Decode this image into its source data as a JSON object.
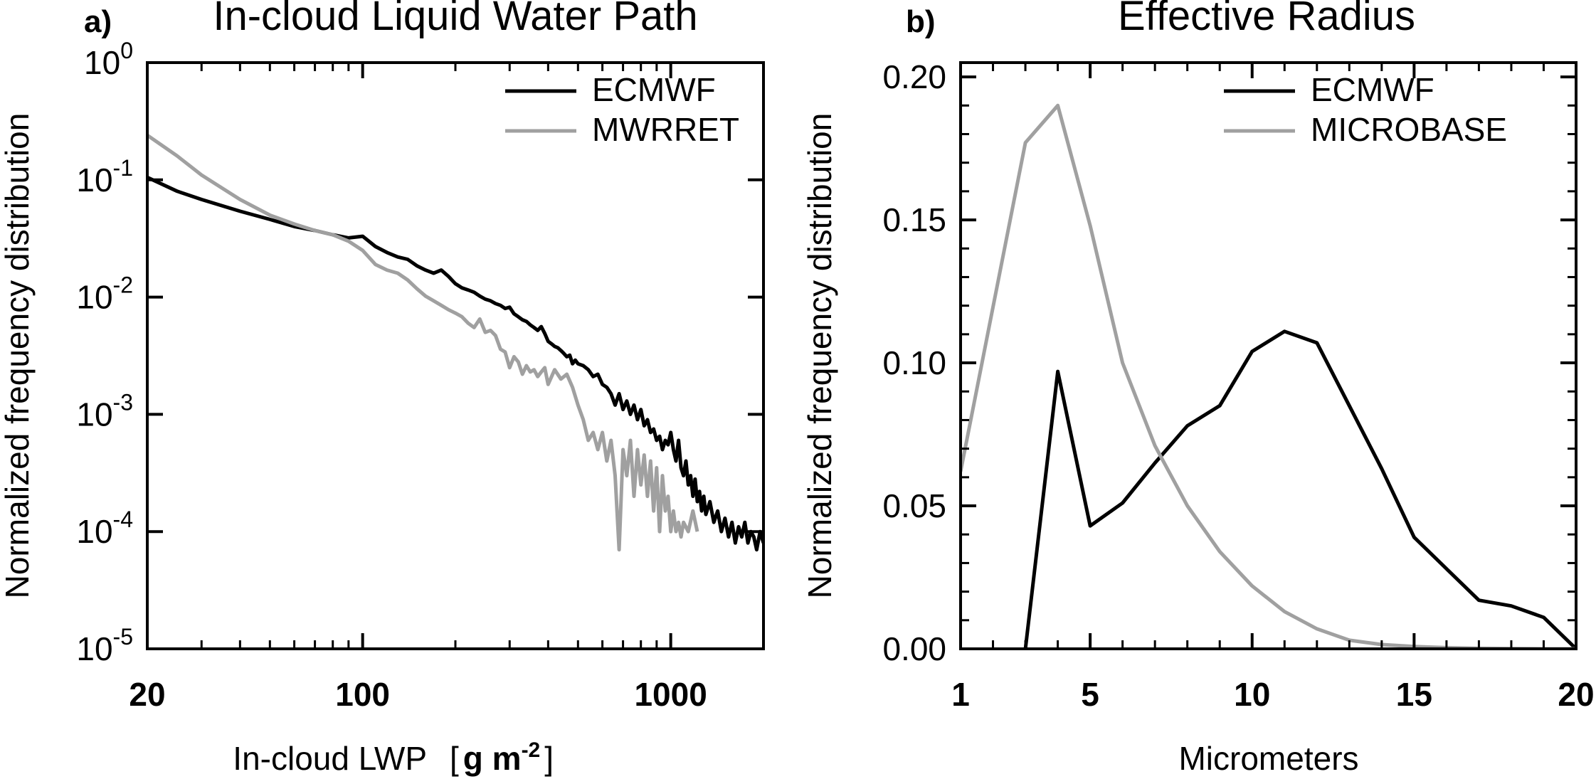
{
  "chart_data": [
    {
      "panel": "a)",
      "type": "line",
      "title": "In-cloud Liquid Water Path",
      "xlabel": "In-cloud LWP",
      "xlabel_unit": "[g m-2]",
      "xlabel_unit_parts": {
        "bracket_open": "[",
        "base": "g m",
        "sup": "-2",
        "bracket_close": "]"
      },
      "ylabel": "Normalized frequency distribution",
      "xscale": "log",
      "yscale": "log",
      "xlim": [
        20,
        2000
      ],
      "ylim": [
        1e-05,
        1
      ],
      "xticks": [
        {
          "value": 20,
          "label": "20"
        },
        {
          "value": 100,
          "label": "100"
        },
        {
          "value": 1000,
          "label": "1000"
        }
      ],
      "yticks": [
        {
          "value": 1,
          "base": "10",
          "sup": "0"
        },
        {
          "value": 0.1,
          "base": "10",
          "sup": "-1"
        },
        {
          "value": 0.01,
          "base": "10",
          "sup": "-2"
        },
        {
          "value": 0.001,
          "base": "10",
          "sup": "-3"
        },
        {
          "value": 0.0001,
          "base": "10",
          "sup": "-4"
        },
        {
          "value": 1e-05,
          "base": "10",
          "sup": "-5"
        }
      ],
      "legend_position": "top-right",
      "series": [
        {
          "name": "ECMWF",
          "color": "#000000",
          "points": [
            [
              20,
              0.105
            ],
            [
              25,
              0.08
            ],
            [
              30,
              0.068
            ],
            [
              40,
              0.054
            ],
            [
              50,
              0.046
            ],
            [
              60,
              0.04
            ],
            [
              70,
              0.037
            ],
            [
              80,
              0.034
            ],
            [
              90,
              0.032
            ],
            [
              100,
              0.033
            ],
            [
              110,
              0.027
            ],
            [
              120,
              0.024
            ],
            [
              130,
              0.022
            ],
            [
              140,
              0.021
            ],
            [
              150,
              0.0185
            ],
            [
              160,
              0.017
            ],
            [
              170,
              0.016
            ],
            [
              180,
              0.017
            ],
            [
              190,
              0.015
            ],
            [
              200,
              0.013
            ],
            [
              210,
              0.012
            ],
            [
              220,
              0.0115
            ],
            [
              230,
              0.011
            ],
            [
              240,
              0.0102
            ],
            [
              250,
              0.0096
            ],
            [
              260,
              0.0093
            ],
            [
              270,
              0.0088
            ],
            [
              280,
              0.0085
            ],
            [
              290,
              0.008
            ],
            [
              300,
              0.0082
            ],
            [
              310,
              0.0072
            ],
            [
              320,
              0.0068
            ],
            [
              330,
              0.0064
            ],
            [
              340,
              0.0062
            ],
            [
              350,
              0.0058
            ],
            [
              360,
              0.0055
            ],
            [
              370,
              0.0052
            ],
            [
              380,
              0.0056
            ],
            [
              390,
              0.0049
            ],
            [
              400,
              0.0042
            ],
            [
              410,
              0.004
            ],
            [
              420,
              0.0038
            ],
            [
              430,
              0.0037
            ],
            [
              440,
              0.0035
            ],
            [
              450,
              0.0033
            ],
            [
              460,
              0.0031
            ],
            [
              470,
              0.0032
            ],
            [
              480,
              0.0027
            ],
            [
              490,
              0.0029
            ],
            [
              500,
              0.0027
            ],
            [
              520,
              0.0026
            ],
            [
              540,
              0.0024
            ],
            [
              560,
              0.0021
            ],
            [
              580,
              0.0022
            ],
            [
              600,
              0.0018
            ],
            [
              620,
              0.0017
            ],
            [
              640,
              0.0015
            ],
            [
              660,
              0.0012
            ],
            [
              680,
              0.0015
            ],
            [
              700,
              0.0011
            ],
            [
              720,
              0.0013
            ],
            [
              740,
              0.001
            ],
            [
              760,
              0.0012
            ],
            [
              780,
              0.0009
            ],
            [
              800,
              0.0011
            ],
            [
              820,
              0.0008
            ],
            [
              840,
              0.0009
            ],
            [
              860,
              0.0007
            ],
            [
              880,
              0.00075
            ],
            [
              900,
              0.0006
            ],
            [
              920,
              0.00065
            ],
            [
              940,
              0.0005
            ],
            [
              960,
              0.0006
            ],
            [
              980,
              0.00055
            ],
            [
              1000,
              0.0007
            ],
            [
              1020,
              0.0005
            ],
            [
              1040,
              0.0004
            ],
            [
              1060,
              0.0006
            ],
            [
              1080,
              0.00035
            ],
            [
              1100,
              0.0003
            ],
            [
              1120,
              0.0004
            ],
            [
              1140,
              0.00025
            ],
            [
              1160,
              0.0003
            ],
            [
              1180,
              0.0002
            ],
            [
              1200,
              0.00028
            ],
            [
              1220,
              0.00018
            ],
            [
              1240,
              0.00022
            ],
            [
              1260,
              0.00015
            ],
            [
              1280,
              0.0002
            ],
            [
              1300,
              0.00014
            ],
            [
              1340,
              0.00018
            ],
            [
              1380,
              0.00012
            ],
            [
              1420,
              0.00015
            ],
            [
              1460,
              0.0001
            ],
            [
              1500,
              0.00013
            ],
            [
              1540,
              9e-05
            ],
            [
              1580,
              0.00012
            ],
            [
              1620,
              8e-05
            ],
            [
              1660,
              0.00011
            ],
            [
              1700,
              9e-05
            ],
            [
              1740,
              0.00012
            ],
            [
              1780,
              8e-05
            ],
            [
              1820,
              0.0001
            ],
            [
              1860,
              9e-05
            ],
            [
              1900,
              7e-05
            ],
            [
              1950,
              0.0001
            ],
            [
              2000,
              8e-05
            ]
          ]
        },
        {
          "name": "MWRRET",
          "color": "#a0a0a0",
          "points": [
            [
              20,
              0.24
            ],
            [
              25,
              0.16
            ],
            [
              30,
              0.11
            ],
            [
              40,
              0.068
            ],
            [
              50,
              0.05
            ],
            [
              60,
              0.042
            ],
            [
              70,
              0.037
            ],
            [
              80,
              0.034
            ],
            [
              90,
              0.03
            ],
            [
              100,
              0.025
            ],
            [
              110,
              0.019
            ],
            [
              120,
              0.017
            ],
            [
              130,
              0.016
            ],
            [
              140,
              0.014
            ],
            [
              150,
              0.0118
            ],
            [
              160,
              0.0102
            ],
            [
              170,
              0.0093
            ],
            [
              180,
              0.0085
            ],
            [
              190,
              0.0078
            ],
            [
              200,
              0.0073
            ],
            [
              210,
              0.0068
            ],
            [
              220,
              0.006
            ],
            [
              230,
              0.0055
            ],
            [
              240,
              0.0065
            ],
            [
              250,
              0.005
            ],
            [
              260,
              0.0052
            ],
            [
              270,
              0.0047
            ],
            [
              280,
              0.0036
            ],
            [
              290,
              0.0034
            ],
            [
              300,
              0.0025
            ],
            [
              310,
              0.0031
            ],
            [
              320,
              0.0028
            ],
            [
              330,
              0.0022
            ],
            [
              340,
              0.0026
            ],
            [
              350,
              0.0023
            ],
            [
              360,
              0.0024
            ],
            [
              370,
              0.0021
            ],
            [
              380,
              0.0023
            ],
            [
              390,
              0.0025
            ],
            [
              400,
              0.0018
            ],
            [
              420,
              0.0024
            ],
            [
              440,
              0.002
            ],
            [
              460,
              0.0022
            ],
            [
              480,
              0.0017
            ],
            [
              500,
              0.0012
            ],
            [
              520,
              0.0009
            ],
            [
              540,
              0.0006
            ],
            [
              560,
              0.0007
            ],
            [
              580,
              0.0005
            ],
            [
              600,
              0.0007
            ],
            [
              620,
              0.0004
            ],
            [
              640,
              0.0006
            ],
            [
              660,
              0.0003
            ],
            [
              680,
              7e-05
            ],
            [
              700,
              0.0005
            ],
            [
              720,
              0.0003
            ],
            [
              740,
              0.0006
            ],
            [
              760,
              0.0002
            ],
            [
              780,
              0.0005
            ],
            [
              800,
              0.00025
            ],
            [
              820,
              0.00045
            ],
            [
              840,
              0.0002
            ],
            [
              860,
              0.0004
            ],
            [
              880,
              0.00015
            ],
            [
              900,
              0.00035
            ],
            [
              920,
              0.0001
            ],
            [
              940,
              0.0003
            ],
            [
              960,
              0.00015
            ],
            [
              980,
              0.0002
            ],
            [
              1000,
              0.0001
            ],
            [
              1020,
              0.00015
            ],
            [
              1040,
              0.0001
            ],
            [
              1060,
              0.00012
            ],
            [
              1080,
              9e-05
            ],
            [
              1100,
              0.00012
            ],
            [
              1140,
              0.0001
            ],
            [
              1180,
              0.00015
            ],
            [
              1220,
              0.0001
            ]
          ]
        }
      ]
    },
    {
      "panel": "b)",
      "type": "line",
      "title": "Effective Radius",
      "xlabel": "Micrometers",
      "ylabel": "Normalized frequency distribution",
      "xscale": "linear",
      "yscale": "linear",
      "xlim": [
        1,
        20
      ],
      "ylim": [
        0,
        0.205
      ],
      "xticks": [
        {
          "value": 1,
          "label": "1"
        },
        {
          "value": 5,
          "label": "5"
        },
        {
          "value": 10,
          "label": "10"
        },
        {
          "value": 15,
          "label": "15"
        },
        {
          "value": 20,
          "label": "20"
        }
      ],
      "yticks": [
        {
          "value": 0.0,
          "label": "0.00"
        },
        {
          "value": 0.05,
          "label": "0.05"
        },
        {
          "value": 0.1,
          "label": "0.10"
        },
        {
          "value": 0.15,
          "label": "0.15"
        },
        {
          "value": 0.2,
          "label": "0.20"
        }
      ],
      "legend_position": "top-right",
      "series": [
        {
          "name": "ECMWF",
          "color": "#000000",
          "points": [
            [
              3,
              0.0
            ],
            [
              4,
              0.097
            ],
            [
              5,
              0.043
            ],
            [
              6,
              0.051
            ],
            [
              7,
              0.065
            ],
            [
              8,
              0.078
            ],
            [
              9,
              0.085
            ],
            [
              10,
              0.104
            ],
            [
              11,
              0.111
            ],
            [
              12,
              0.107
            ],
            [
              13,
              0.085
            ],
            [
              14,
              0.063
            ],
            [
              15,
              0.039
            ],
            [
              16,
              0.028
            ],
            [
              17,
              0.017
            ],
            [
              18,
              0.015
            ],
            [
              19,
              0.011
            ],
            [
              20,
              0.0
            ]
          ]
        },
        {
          "name": "MICROBASE",
          "color": "#a0a0a0",
          "points": [
            [
              1,
              0.062
            ],
            [
              3,
              0.177
            ],
            [
              4,
              0.19
            ],
            [
              5,
              0.148
            ],
            [
              6,
              0.1
            ],
            [
              7,
              0.071
            ],
            [
              8,
              0.05
            ],
            [
              9,
              0.034
            ],
            [
              10,
              0.022
            ],
            [
              11,
              0.013
            ],
            [
              12,
              0.007
            ],
            [
              13,
              0.003
            ],
            [
              14,
              0.0015
            ],
            [
              15,
              0.0008
            ],
            [
              16,
              0.0004
            ],
            [
              17,
              0.0002
            ],
            [
              18,
              0.0001
            ],
            [
              19,
              0.0
            ],
            [
              20,
              0.0
            ]
          ]
        }
      ]
    }
  ]
}
